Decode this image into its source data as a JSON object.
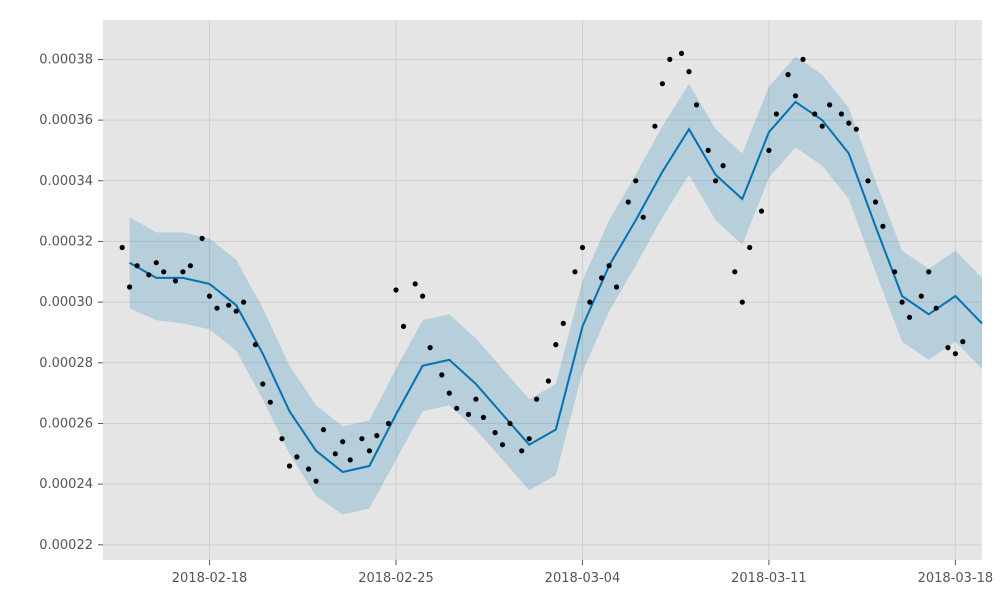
{
  "chart_data": {
    "type": "line",
    "title": "",
    "xlabel": "",
    "ylabel": "",
    "x_range": [
      "2018-02-14",
      "2018-03-19"
    ],
    "ylim": [
      0.000215,
      0.000393
    ],
    "x_ticks": [
      "2018-02-18",
      "2018-02-25",
      "2018-03-04",
      "2018-03-11",
      "2018-03-18"
    ],
    "y_ticks": [
      0.00022,
      0.00024,
      0.00026,
      0.00028,
      0.0003,
      0.00032,
      0.00034,
      0.00036,
      0.00038
    ],
    "y_tick_labels": [
      "0.00022",
      "0.00024",
      "0.00026",
      "0.00028",
      "0.00030",
      "0.00032",
      "0.00034",
      "0.00036",
      "0.00038"
    ],
    "grid": true,
    "colors": {
      "plot_bg": "#e5e5e5",
      "grid": "#cfcfcf",
      "forecast": "#0072b2",
      "band": "#0072b2",
      "points": "#000000"
    },
    "forecast": {
      "x": [
        "2018-02-15",
        "2018-02-16",
        "2018-02-17",
        "2018-02-18",
        "2018-02-19",
        "2018-02-20",
        "2018-02-21",
        "2018-02-22",
        "2018-02-23",
        "2018-02-24",
        "2018-02-25",
        "2018-02-26",
        "2018-02-27",
        "2018-02-28",
        "2018-03-01",
        "2018-03-02",
        "2018-03-03",
        "2018-03-04",
        "2018-03-05",
        "2018-03-06",
        "2018-03-07",
        "2018-03-08",
        "2018-03-09",
        "2018-03-10",
        "2018-03-11",
        "2018-03-12",
        "2018-03-13",
        "2018-03-14",
        "2018-03-15",
        "2018-03-16",
        "2018-03-17",
        "2018-03-18",
        "2018-03-19"
      ],
      "yhat": [
        0.000313,
        0.000308,
        0.000308,
        0.000306,
        0.000299,
        0.000283,
        0.000264,
        0.000251,
        0.000244,
        0.000246,
        0.000263,
        0.000279,
        0.000281,
        0.000273,
        0.000263,
        0.000253,
        0.000258,
        0.000292,
        0.000312,
        0.000327,
        0.000343,
        0.000357,
        0.000342,
        0.000334,
        0.000356,
        0.000366,
        0.00036,
        0.000349,
        0.000325,
        0.000302,
        0.000296,
        0.000302,
        0.000293
      ],
      "yhat_lower": [
        0.000298,
        0.000294,
        0.000293,
        0.000291,
        0.000284,
        0.000268,
        0.00025,
        0.000236,
        0.00023,
        0.000232,
        0.000248,
        0.000264,
        0.000266,
        0.000258,
        0.000248,
        0.000238,
        0.000243,
        0.000277,
        0.000297,
        0.000312,
        0.000328,
        0.000342,
        0.000327,
        0.000319,
        0.000341,
        0.000351,
        0.000345,
        0.000334,
        0.00031,
        0.000287,
        0.000281,
        0.000287,
        0.000278
      ],
      "yhat_upper": [
        0.000328,
        0.000323,
        0.000323,
        0.000321,
        0.000314,
        0.000298,
        0.000279,
        0.000266,
        0.000259,
        0.000261,
        0.000278,
        0.000294,
        0.000296,
        0.000288,
        0.000278,
        0.000268,
        0.000273,
        0.000307,
        0.000327,
        0.000342,
        0.000358,
        0.000372,
        0.000357,
        0.000349,
        0.000371,
        0.000381,
        0.000375,
        0.000364,
        0.00034,
        0.000317,
        0.000311,
        0.000317,
        0.000308
      ]
    },
    "observations": [
      {
        "x": "2018-02-15",
        "y": 0.000318
      },
      {
        "x": "2018-02-15",
        "y": 0.000305
      },
      {
        "x": "2018-02-15",
        "y": 0.000312
      },
      {
        "x": "2018-02-16",
        "y": 0.000309
      },
      {
        "x": "2018-02-16",
        "y": 0.000313
      },
      {
        "x": "2018-02-16",
        "y": 0.00031
      },
      {
        "x": "2018-02-17",
        "y": 0.000307
      },
      {
        "x": "2018-02-17",
        "y": 0.00031
      },
      {
        "x": "2018-02-17",
        "y": 0.000312
      },
      {
        "x": "2018-02-18",
        "y": 0.000321
      },
      {
        "x": "2018-02-18",
        "y": 0.000302
      },
      {
        "x": "2018-02-18",
        "y": 0.000298
      },
      {
        "x": "2018-02-19",
        "y": 0.000299
      },
      {
        "x": "2018-02-19",
        "y": 0.000297
      },
      {
        "x": "2018-02-19",
        "y": 0.0003
      },
      {
        "x": "2018-02-20",
        "y": 0.000286
      },
      {
        "x": "2018-02-20",
        "y": 0.000273
      },
      {
        "x": "2018-02-20",
        "y": 0.000267
      },
      {
        "x": "2018-02-21",
        "y": 0.000255
      },
      {
        "x": "2018-02-21",
        "y": 0.000246
      },
      {
        "x": "2018-02-21",
        "y": 0.000249
      },
      {
        "x": "2018-02-22",
        "y": 0.000245
      },
      {
        "x": "2018-02-22",
        "y": 0.000241
      },
      {
        "x": "2018-02-22",
        "y": 0.000258
      },
      {
        "x": "2018-02-23",
        "y": 0.00025
      },
      {
        "x": "2018-02-23",
        "y": 0.000254
      },
      {
        "x": "2018-02-23",
        "y": 0.000248
      },
      {
        "x": "2018-02-24",
        "y": 0.000255
      },
      {
        "x": "2018-02-24",
        "y": 0.000251
      },
      {
        "x": "2018-02-24",
        "y": 0.000256
      },
      {
        "x": "2018-02-25",
        "y": 0.00026
      },
      {
        "x": "2018-02-25",
        "y": 0.000304
      },
      {
        "x": "2018-02-25",
        "y": 0.000292
      },
      {
        "x": "2018-02-26",
        "y": 0.000306
      },
      {
        "x": "2018-02-26",
        "y": 0.000302
      },
      {
        "x": "2018-02-26",
        "y": 0.000285
      },
      {
        "x": "2018-02-27",
        "y": 0.000276
      },
      {
        "x": "2018-02-27",
        "y": 0.00027
      },
      {
        "x": "2018-02-27",
        "y": 0.000265
      },
      {
        "x": "2018-02-28",
        "y": 0.000263
      },
      {
        "x": "2018-02-28",
        "y": 0.000268
      },
      {
        "x": "2018-02-28",
        "y": 0.000262
      },
      {
        "x": "2018-03-01",
        "y": 0.000257
      },
      {
        "x": "2018-03-01",
        "y": 0.000253
      },
      {
        "x": "2018-03-01",
        "y": 0.00026
      },
      {
        "x": "2018-03-02",
        "y": 0.000251
      },
      {
        "x": "2018-03-02",
        "y": 0.000255
      },
      {
        "x": "2018-03-02",
        "y": 0.000268
      },
      {
        "x": "2018-03-03",
        "y": 0.000274
      },
      {
        "x": "2018-03-03",
        "y": 0.000286
      },
      {
        "x": "2018-03-03",
        "y": 0.000293
      },
      {
        "x": "2018-03-04",
        "y": 0.00031
      },
      {
        "x": "2018-03-04",
        "y": 0.000318
      },
      {
        "x": "2018-03-04",
        "y": 0.0003
      },
      {
        "x": "2018-03-05",
        "y": 0.000308
      },
      {
        "x": "2018-03-05",
        "y": 0.000312
      },
      {
        "x": "2018-03-05",
        "y": 0.000305
      },
      {
        "x": "2018-03-06",
        "y": 0.000333
      },
      {
        "x": "2018-03-06",
        "y": 0.00034
      },
      {
        "x": "2018-03-06",
        "y": 0.000328
      },
      {
        "x": "2018-03-07",
        "y": 0.000358
      },
      {
        "x": "2018-03-07",
        "y": 0.000372
      },
      {
        "x": "2018-03-07",
        "y": 0.00038
      },
      {
        "x": "2018-03-08",
        "y": 0.000382
      },
      {
        "x": "2018-03-08",
        "y": 0.000376
      },
      {
        "x": "2018-03-08",
        "y": 0.000365
      },
      {
        "x": "2018-03-09",
        "y": 0.00035
      },
      {
        "x": "2018-03-09",
        "y": 0.00034
      },
      {
        "x": "2018-03-09",
        "y": 0.000345
      },
      {
        "x": "2018-03-10",
        "y": 0.00031
      },
      {
        "x": "2018-03-10",
        "y": 0.0003
      },
      {
        "x": "2018-03-10",
        "y": 0.000318
      },
      {
        "x": "2018-03-11",
        "y": 0.00033
      },
      {
        "x": "2018-03-11",
        "y": 0.00035
      },
      {
        "x": "2018-03-11",
        "y": 0.000362
      },
      {
        "x": "2018-03-12",
        "y": 0.000375
      },
      {
        "x": "2018-03-12",
        "y": 0.000368
      },
      {
        "x": "2018-03-12",
        "y": 0.00038
      },
      {
        "x": "2018-03-13",
        "y": 0.000362
      },
      {
        "x": "2018-03-13",
        "y": 0.000358
      },
      {
        "x": "2018-03-13",
        "y": 0.000365
      },
      {
        "x": "2018-03-14",
        "y": 0.000362
      },
      {
        "x": "2018-03-14",
        "y": 0.000359
      },
      {
        "x": "2018-03-14",
        "y": 0.000357
      },
      {
        "x": "2018-03-15",
        "y": 0.00034
      },
      {
        "x": "2018-03-15",
        "y": 0.000333
      },
      {
        "x": "2018-03-15",
        "y": 0.000325
      },
      {
        "x": "2018-03-16",
        "y": 0.00031
      },
      {
        "x": "2018-03-16",
        "y": 0.0003
      },
      {
        "x": "2018-03-16",
        "y": 0.000295
      },
      {
        "x": "2018-03-17",
        "y": 0.000302
      },
      {
        "x": "2018-03-17",
        "y": 0.00031
      },
      {
        "x": "2018-03-17",
        "y": 0.000298
      },
      {
        "x": "2018-03-18",
        "y": 0.000285
      },
      {
        "x": "2018-03-18",
        "y": 0.000283
      },
      {
        "x": "2018-03-18",
        "y": 0.000287
      }
    ]
  }
}
